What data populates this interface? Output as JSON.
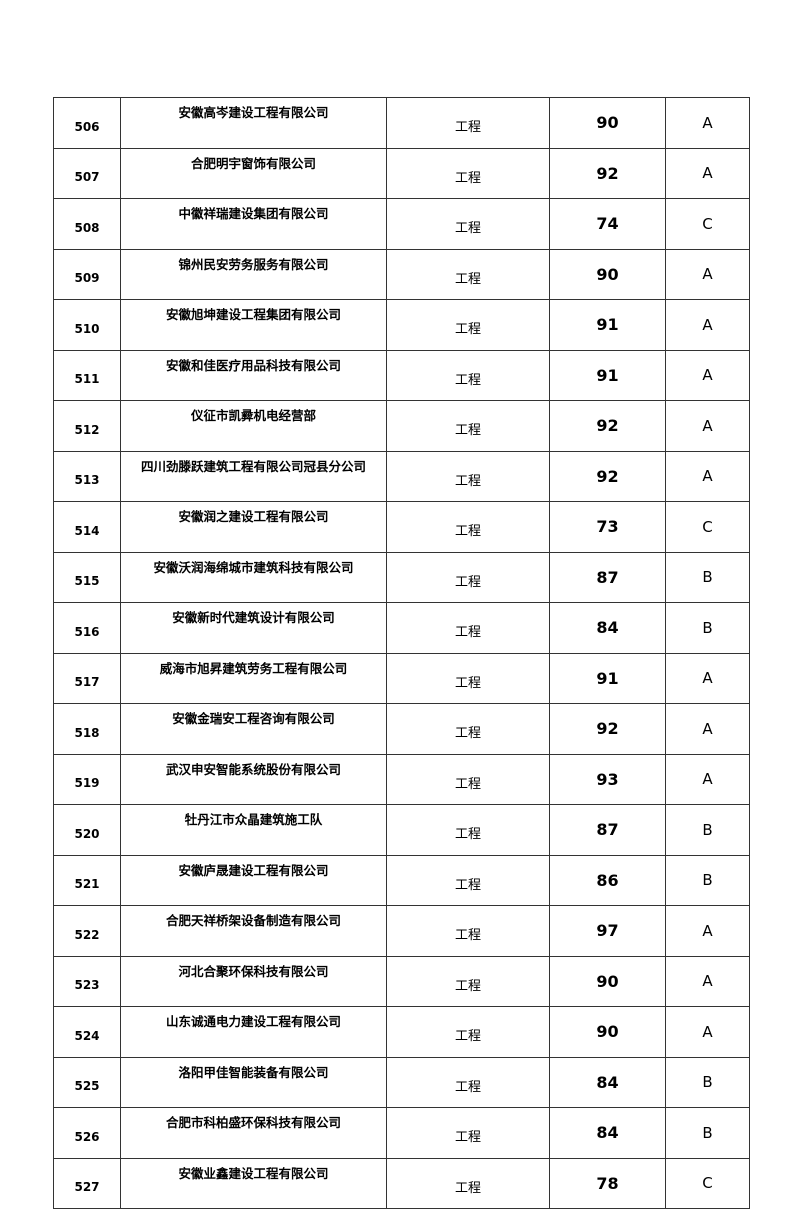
{
  "rows": [
    {
      "no": "506",
      "name": "安徽高岑建设工程有限公司",
      "category": "工程",
      "score": "90",
      "grade": "A"
    },
    {
      "no": "507",
      "name": "合肥明宇窗饰有限公司",
      "category": "工程",
      "score": "92",
      "grade": "A"
    },
    {
      "no": "508",
      "name": "中徽祥瑞建设集团有限公司",
      "category": "工程",
      "score": "74",
      "grade": "C"
    },
    {
      "no": "509",
      "name": "锦州民安劳务服务有限公司",
      "category": "工程",
      "score": "90",
      "grade": "A"
    },
    {
      "no": "510",
      "name": "安徽旭坤建设工程集团有限公司",
      "category": "工程",
      "score": "91",
      "grade": "A"
    },
    {
      "no": "511",
      "name": "安徽和佳医疗用品科技有限公司",
      "category": "工程",
      "score": "91",
      "grade": "A"
    },
    {
      "no": "512",
      "name": "仪征市凯彛机电经营部",
      "category": "工程",
      "score": "92",
      "grade": "A"
    },
    {
      "no": "513",
      "name": "四川劲滕跃建筑工程有限公司冠县分公司",
      "category": "工程",
      "score": "92",
      "grade": "A"
    },
    {
      "no": "514",
      "name": "安徽润之建设工程有限公司",
      "category": "工程",
      "score": "73",
      "grade": "C"
    },
    {
      "no": "515",
      "name": "安徽沃润海绵城市建筑科技有限公司",
      "category": "工程",
      "score": "87",
      "grade": "B"
    },
    {
      "no": "516",
      "name": "安徽新时代建筑设计有限公司",
      "category": "工程",
      "score": "84",
      "grade": "B"
    },
    {
      "no": "517",
      "name": "威海市旭昇建筑劳务工程有限公司",
      "category": "工程",
      "score": "91",
      "grade": "A"
    },
    {
      "no": "518",
      "name": "安徽金瑞安工程咨询有限公司",
      "category": "工程",
      "score": "92",
      "grade": "A"
    },
    {
      "no": "519",
      "name": "武汉申安智能系统股份有限公司",
      "category": "工程",
      "score": "93",
      "grade": "A"
    },
    {
      "no": "520",
      "name": "牡丹江市众晶建筑施工队",
      "category": "工程",
      "score": "87",
      "grade": "B"
    },
    {
      "no": "521",
      "name": "安徽庐晟建设工程有限公司",
      "category": "工程",
      "score": "86",
      "grade": "B"
    },
    {
      "no": "522",
      "name": "合肥天祥桥架设备制造有限公司",
      "category": "工程",
      "score": "97",
      "grade": "A"
    },
    {
      "no": "523",
      "name": "河北合聚环保科技有限公司",
      "category": "工程",
      "score": "90",
      "grade": "A"
    },
    {
      "no": "524",
      "name": "山东诚通电力建设工程有限公司",
      "category": "工程",
      "score": "90",
      "grade": "A"
    },
    {
      "no": "525",
      "name": "洛阳甲佳智能装备有限公司",
      "category": "工程",
      "score": "84",
      "grade": "B"
    },
    {
      "no": "526",
      "name": "合肥市科柏盛环保科技有限公司",
      "category": "工程",
      "score": "84",
      "grade": "B"
    },
    {
      "no": "527",
      "name": "安徽业鑫建设工程有限公司",
      "category": "工程",
      "score": "78",
      "grade": "C"
    }
  ]
}
